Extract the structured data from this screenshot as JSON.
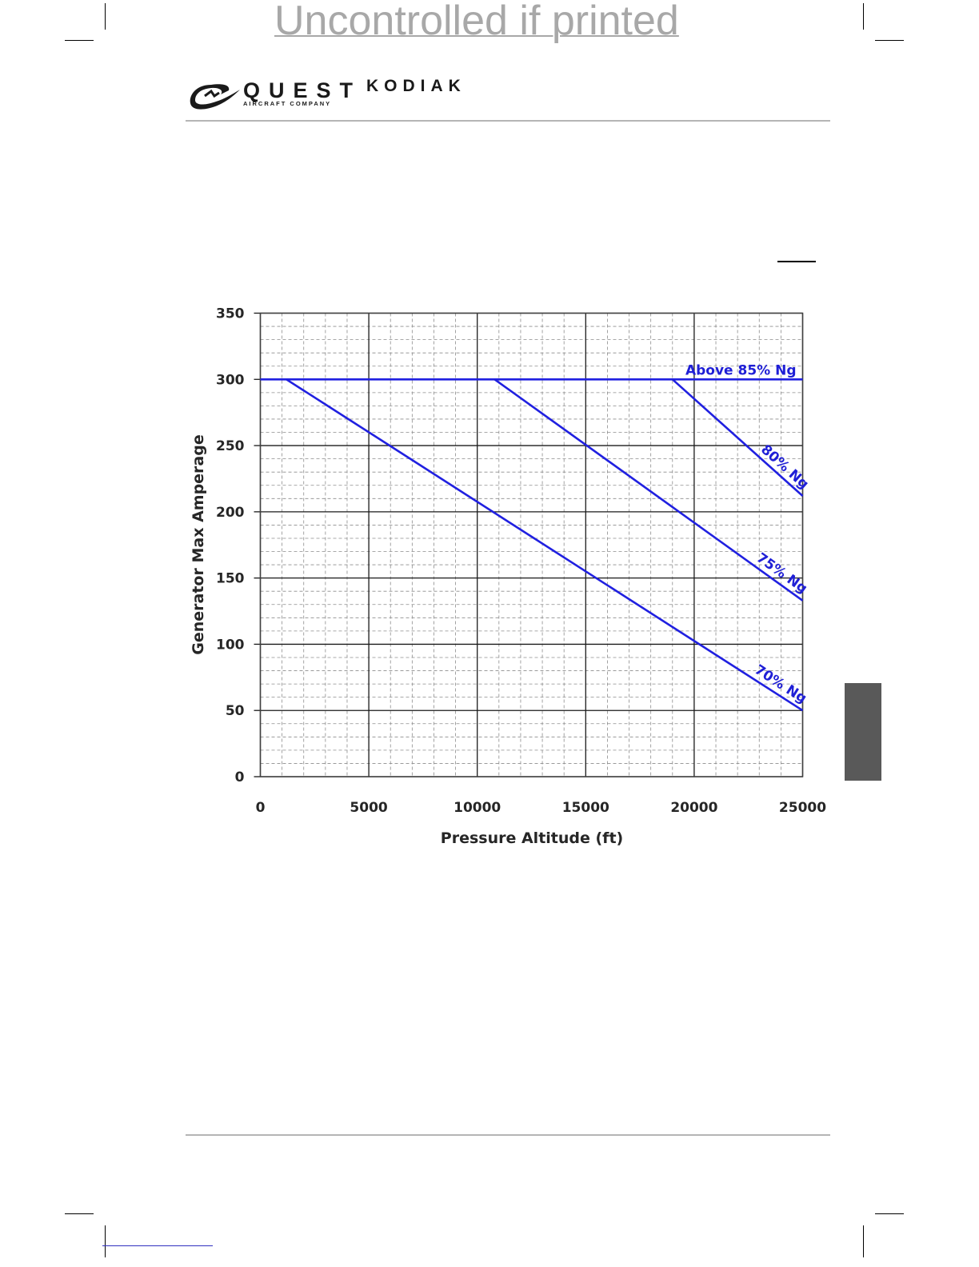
{
  "watermark": "Uncontrolled if printed",
  "header": {
    "brand": "QUEST",
    "brand_sub": "AIRCRAFT COMPANY",
    "product": "KODIAK"
  },
  "colors": {
    "series": "#2020e0",
    "tab": "#595959",
    "rule": "#b5b5b5"
  },
  "chart_data": {
    "type": "line",
    "title": "",
    "xlabel": "Pressure Altitude (ft)",
    "ylabel": "Generator Max Amperage",
    "xlim": [
      0,
      25000
    ],
    "ylim": [
      0,
      350
    ],
    "xticks": [
      0,
      5000,
      10000,
      15000,
      20000,
      25000
    ],
    "yticks": [
      0,
      50,
      100,
      150,
      200,
      250,
      300,
      350
    ],
    "grid": true,
    "series": [
      {
        "name": "Above 85% Ng",
        "x": [
          0,
          25000
        ],
        "y": [
          300,
          300
        ]
      },
      {
        "name": "80% Ng",
        "x": [
          19000,
          25000
        ],
        "y": [
          300,
          212
        ]
      },
      {
        "name": "75% Ng",
        "x": [
          10800,
          25000
        ],
        "y": [
          300,
          133
        ]
      },
      {
        "name": "70% Ng",
        "x": [
          1200,
          25000
        ],
        "y": [
          300,
          50
        ]
      }
    ]
  }
}
